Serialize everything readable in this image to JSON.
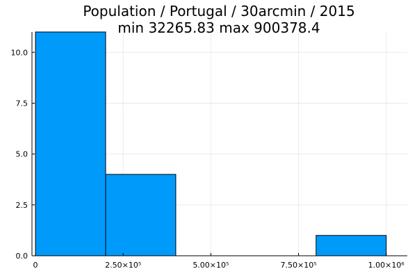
{
  "chart_data": {
    "type": "bar",
    "title": "Population / Portugal / 30arcmin / 2015",
    "subtitle": "min 32265.83  max 900378.4",
    "xlabel": "",
    "ylabel": "",
    "bins": [
      {
        "start": 0,
        "end": 200000,
        "count": 11
      },
      {
        "start": 200000,
        "end": 400000,
        "count": 4
      },
      {
        "start": 400000,
        "end": 600000,
        "count": 0
      },
      {
        "start": 600000,
        "end": 800000,
        "count": 0
      },
      {
        "start": 800000,
        "end": 1000000,
        "count": 1
      }
    ],
    "xlim": [
      -10000,
      1060000
    ],
    "ylim": [
      0,
      11
    ],
    "x_ticks": [
      {
        "value": 0,
        "label": "0"
      },
      {
        "value": 250000,
        "label": "2.50×10⁵"
      },
      {
        "value": 500000,
        "label": "5.00×10⁵"
      },
      {
        "value": 750000,
        "label": "7.50×10⁵"
      },
      {
        "value": 1000000,
        "label": "1.00×10⁶"
      }
    ],
    "y_ticks": [
      {
        "value": 0,
        "label": "0.0"
      },
      {
        "value": 2.5,
        "label": "2.5"
      },
      {
        "value": 5,
        "label": "5.0"
      },
      {
        "value": 7.5,
        "label": "7.5"
      },
      {
        "value": 10,
        "label": "10.0"
      }
    ],
    "grid": true,
    "legend": false,
    "bar_color": "#009AFA"
  }
}
